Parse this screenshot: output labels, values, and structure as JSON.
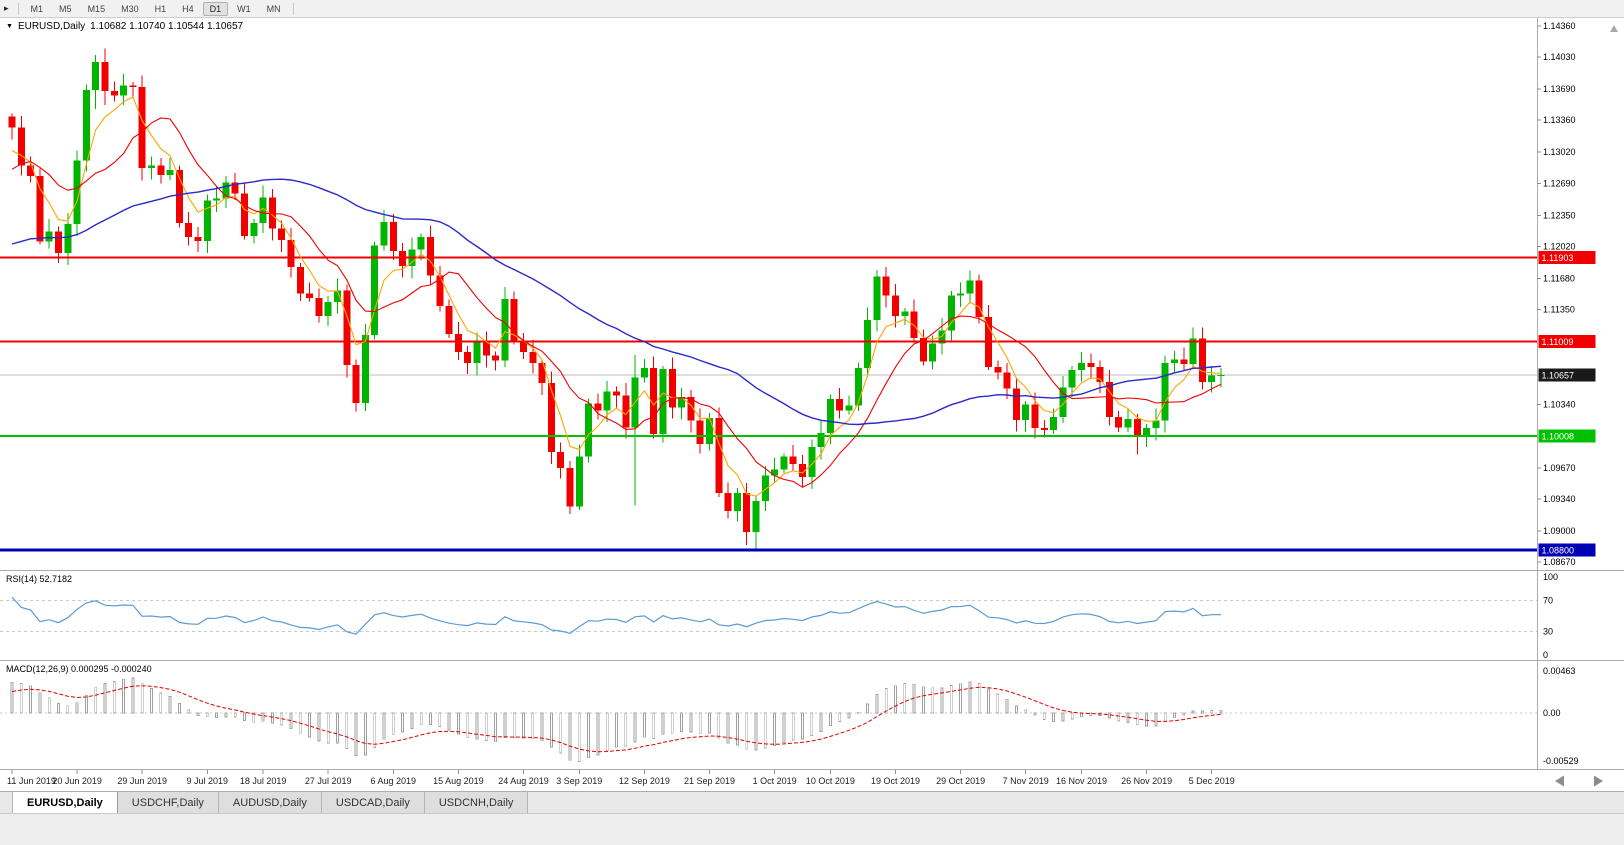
{
  "toolbar": {
    "handle_icon": "▸",
    "buttons": [
      "M1",
      "M5",
      "M15",
      "M30",
      "H1",
      "H4",
      "D1",
      "W1",
      "MN"
    ],
    "active": "D1"
  },
  "chart": {
    "marker_icon": "▼",
    "symbol_label": "EURUSD,Daily",
    "ohlc_label": "1.10682 1.10740 1.10544 1.10657"
  },
  "chart_data": {
    "type": "candlestick",
    "title": "EURUSD,Daily",
    "ohlc_display": [
      1.10682,
      1.1074,
      1.10544,
      1.10657
    ],
    "price_axis": {
      "min": 1.0867,
      "max": 1.1436,
      "ticks": [
        1.1436,
        1.1403,
        1.1369,
        1.1336,
        1.1302,
        1.1269,
        1.1235,
        1.1202,
        1.1168,
        1.1135,
        1.1034,
        1.0967,
        1.0934,
        1.09,
        1.0867
      ]
    },
    "hlines": [
      {
        "value": 1.11903,
        "color": "#F20000",
        "width": 2
      },
      {
        "value": 1.11009,
        "color": "#F20000",
        "width": 2
      },
      {
        "value": 1.10008,
        "color": "#00C000",
        "width": 2
      },
      {
        "value": 1.088,
        "color": "#0000B4",
        "width": 3
      }
    ],
    "current_price": {
      "value": 1.10657,
      "line_color": "#BCBCBC",
      "tag_color": "#1A1A1A"
    },
    "colors": {
      "up": "#00B400",
      "down": "#F20000"
    },
    "moving_averages": [
      {
        "name": "fast",
        "type": "ema",
        "period": 5,
        "color": "#FFA500"
      },
      {
        "name": "mid",
        "type": "sma",
        "period": 10,
        "color": "#F20000"
      },
      {
        "name": "slow",
        "type": "sma",
        "period": 40,
        "color": "#2A2AC8"
      }
    ],
    "date_labels": [
      {
        "i": 0,
        "t": "11 Jun 2019"
      },
      {
        "i": 7,
        "t": "20 Jun 2019"
      },
      {
        "i": 14,
        "t": "29 Jun 2019"
      },
      {
        "i": 21,
        "t": "9 Jul 2019"
      },
      {
        "i": 27,
        "t": "18 Jul 2019"
      },
      {
        "i": 34,
        "t": "27 Jul 2019"
      },
      {
        "i": 41,
        "t": "6 Aug 2019"
      },
      {
        "i": 48,
        "t": "15 Aug 2019"
      },
      {
        "i": 55,
        "t": "24 Aug 2019"
      },
      {
        "i": 61,
        "t": "3 Sep 2019"
      },
      {
        "i": 68,
        "t": "12 Sep 2019"
      },
      {
        "i": 75,
        "t": "21 Sep 2019"
      },
      {
        "i": 82,
        "t": "1 Oct 2019"
      },
      {
        "i": 88,
        "t": "10 Oct 2019"
      },
      {
        "i": 95,
        "t": "19 Oct 2019"
      },
      {
        "i": 102,
        "t": "29 Oct 2019"
      },
      {
        "i": 109,
        "t": "7 Nov 2019"
      },
      {
        "i": 115,
        "t": "16 Nov 2019"
      },
      {
        "i": 122,
        "t": "26 Nov 2019"
      },
      {
        "i": 129,
        "t": "5 Dec 2019"
      }
    ],
    "candles": {
      "open_first": 1.134,
      "closes": [
        1.1328,
        1.1288,
        1.1277,
        1.1207,
        1.1218,
        1.1195,
        1.1226,
        1.1293,
        1.1368,
        1.1398,
        1.1367,
        1.1362,
        1.1373,
        1.1371,
        1.1285,
        1.1288,
        1.1278,
        1.1283,
        1.1227,
        1.1212,
        1.1208,
        1.1251,
        1.1253,
        1.127,
        1.1258,
        1.1213,
        1.1227,
        1.1254,
        1.1221,
        1.1209,
        1.118,
        1.1152,
        1.1147,
        1.1128,
        1.1143,
        1.1155,
        1.1076,
        1.1036,
        1.1108,
        1.1203,
        1.1228,
        1.1197,
        1.1181,
        1.1199,
        1.1212,
        1.1171,
        1.1139,
        1.1109,
        1.109,
        1.1078,
        1.11,
        1.1086,
        1.1081,
        1.1146,
        1.1101,
        1.109,
        1.1078,
        1.1057,
        1.0984,
        1.0967,
        1.0926,
        1.0979,
        1.1035,
        1.1028,
        1.1048,
        1.1044,
        1.101,
        1.1063,
        1.1073,
        1.1003,
        1.1072,
        1.1031,
        1.1042,
        1.1017,
        1.0992,
        1.102,
        1.094,
        1.0921,
        1.094,
        1.0899,
        1.0932,
        1.0959,
        1.0965,
        1.0979,
        1.0971,
        1.0957,
        1.0989,
        1.1004,
        1.104,
        1.1028,
        1.1033,
        1.1073,
        1.1124,
        1.117,
        1.115,
        1.1128,
        1.1133,
        1.1105,
        1.108,
        1.1099,
        1.1113,
        1.115,
        1.1152,
        1.1166,
        1.1127,
        1.1074,
        1.1068,
        1.1051,
        1.1018,
        1.1034,
        1.1009,
        1.1007,
        1.1021,
        1.1052,
        1.1071,
        1.1078,
        1.1074,
        1.1058,
        1.1021,
        1.101,
        1.1019,
        1.1001,
        1.1009,
        1.1017,
        1.1078,
        1.1082,
        1.1077,
        1.1104,
        1.1058,
        1.1065,
        1.10657
      ],
      "preroll": [
        1.1225,
        1.1218,
        1.121,
        1.1205,
        1.1198,
        1.119,
        1.1201,
        1.1211,
        1.1206,
        1.1198,
        1.1185,
        1.1178,
        1.117,
        1.1182,
        1.1192,
        1.1201,
        1.1196,
        1.1188,
        1.1179,
        1.1172,
        1.1162,
        1.1158,
        1.117,
        1.1182,
        1.119,
        1.1184,
        1.1176,
        1.1168,
        1.116,
        1.1152,
        1.116,
        1.1172,
        1.1184,
        1.1178,
        1.117,
        1.1163,
        1.1171,
        1.118,
        1.119,
        1.1202,
        1.1216,
        1.123,
        1.1252,
        1.127,
        1.1296,
        1.1306,
        1.128,
        1.127,
        1.1291,
        1.1316
      ],
      "overrides": {
        "9": [
          1.1368,
          1.1405,
          1.1348,
          1.1398
        ],
        "10": [
          1.1398,
          1.1412,
          1.1352,
          1.1367
        ],
        "37": [
          1.1076,
          1.1082,
          1.1027,
          1.1036
        ],
        "67": [
          1.101,
          1.1087,
          1.0927,
          1.1063
        ],
        "79": [
          1.094,
          1.0951,
          1.0885,
          1.0899
        ],
        "80": [
          1.0899,
          1.0937,
          1.0879,
          1.0932
        ],
        "121": [
          1.1019,
          1.1024,
          1.0981,
          1.1001
        ],
        "127": [
          1.1077,
          1.1116,
          1.1072,
          1.1104
        ]
      }
    },
    "rsi": {
      "label": "RSI(14) 52.7182",
      "period": 14,
      "color": "#5B9BD5",
      "levels": [
        100,
        70,
        30,
        0
      ],
      "dashed_levels": [
        70,
        30
      ]
    },
    "macd": {
      "label": "MACD(12,26,9) 0.000295 -0.000240",
      "fast": 12,
      "slow": 26,
      "signal": 9,
      "bar_color": "#A0A0A0",
      "signal_color": "#E00000",
      "axis": [
        {
          "v": 0.00463,
          "t": "0.00463"
        },
        {
          "v": 0,
          "t": "0.00"
        },
        {
          "v": -0.00529,
          "t": "-0.00529"
        }
      ]
    }
  },
  "tabs": {
    "items": [
      "EURUSD,Daily",
      "USDCHF,Daily",
      "AUDUSD,Daily",
      "USDCAD,Daily",
      "USDCNH,Daily"
    ],
    "active": "EURUSD,Daily"
  }
}
